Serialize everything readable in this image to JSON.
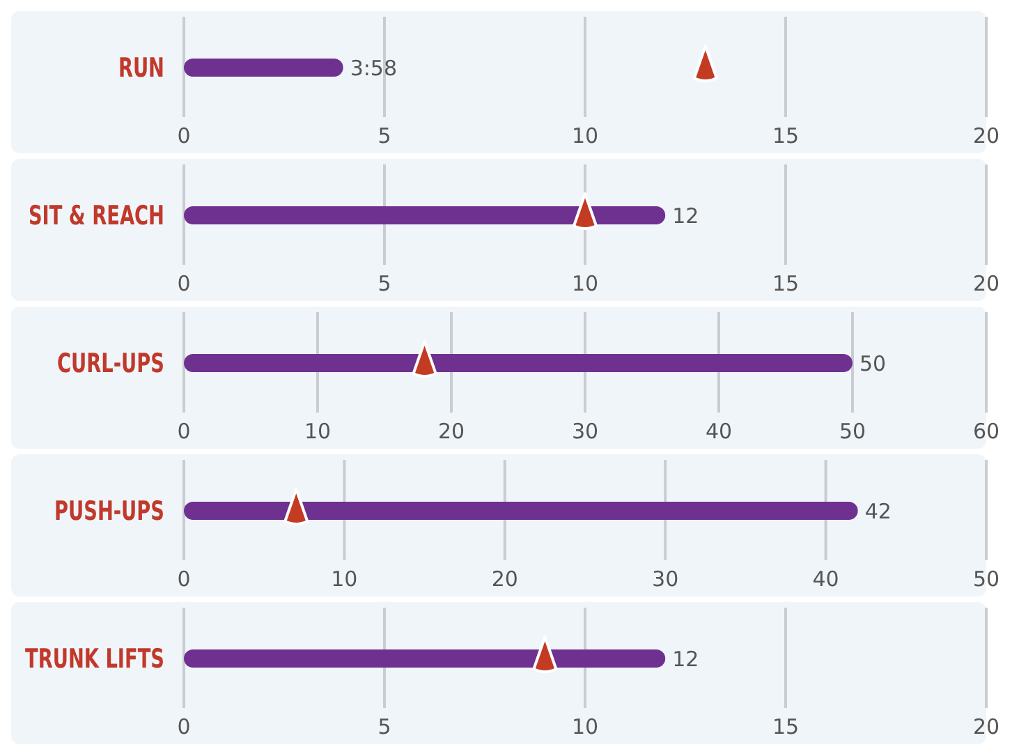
{
  "chart_data": [
    {
      "type": "bar",
      "orientation": "horizontal",
      "categories": [
        "RUN"
      ],
      "series": [
        {
          "type": "bar",
          "color": "#6f3190",
          "values": [
            3.97
          ],
          "value_labels": [
            "3:58"
          ]
        },
        {
          "type": "scatter",
          "marker": "triangle",
          "color": "#c23b22",
          "values": [
            13
          ]
        }
      ],
      "xlim": [
        0,
        20
      ],
      "xticks": [
        0,
        5,
        10,
        15,
        20
      ],
      "grid": "x"
    },
    {
      "type": "bar",
      "orientation": "horizontal",
      "categories": [
        "SIT & REACH"
      ],
      "series": [
        {
          "type": "bar",
          "color": "#6f3190",
          "values": [
            12
          ],
          "value_labels": [
            "12"
          ]
        },
        {
          "type": "scatter",
          "marker": "triangle",
          "color": "#c23b22",
          "values": [
            10
          ]
        }
      ],
      "xlim": [
        0,
        20
      ],
      "xticks": [
        0,
        5,
        10,
        15,
        20
      ],
      "grid": "x"
    },
    {
      "type": "bar",
      "orientation": "horizontal",
      "categories": [
        "CURL-UPS"
      ],
      "series": [
        {
          "type": "bar",
          "color": "#6f3190",
          "values": [
            50
          ],
          "value_labels": [
            "50"
          ]
        },
        {
          "type": "scatter",
          "marker": "triangle",
          "color": "#c23b22",
          "values": [
            18
          ]
        }
      ],
      "xlim": [
        0,
        60
      ],
      "xticks": [
        0,
        10,
        20,
        30,
        40,
        50,
        60
      ],
      "grid": "x"
    },
    {
      "type": "bar",
      "orientation": "horizontal",
      "categories": [
        "PUSH-UPS"
      ],
      "series": [
        {
          "type": "bar",
          "color": "#6f3190",
          "values": [
            42
          ],
          "value_labels": [
            "42"
          ]
        },
        {
          "type": "scatter",
          "marker": "triangle",
          "color": "#c23b22",
          "values": [
            7
          ]
        }
      ],
      "xlim": [
        0,
        50
      ],
      "xticks": [
        0,
        10,
        20,
        30,
        40,
        50
      ],
      "grid": "x"
    },
    {
      "type": "bar",
      "orientation": "horizontal",
      "categories": [
        "TRUNK LIFTS"
      ],
      "series": [
        {
          "type": "bar",
          "color": "#6f3190",
          "values": [
            12
          ],
          "value_labels": [
            "12"
          ]
        },
        {
          "type": "scatter",
          "marker": "triangle",
          "color": "#c23b22",
          "values": [
            9
          ]
        }
      ],
      "xlim": [
        0,
        20
      ],
      "xticks": [
        0,
        5,
        10,
        15,
        20
      ],
      "grid": "x"
    }
  ]
}
